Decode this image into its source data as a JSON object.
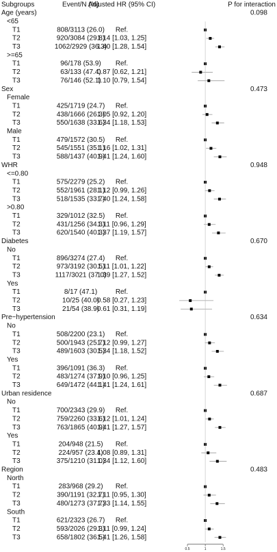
{
  "chart_data": {
    "type": "forest",
    "headers": [
      "Subgroups",
      "Event/N (%)",
      "Adjusted HR (95% CI)",
      "P for interaction"
    ],
    "xlim": [
      0.25,
      1.65
    ],
    "xticks": [
      0.5,
      1,
      1.5
    ],
    "reference_line": 1,
    "point_color": "#000000",
    "ci_color": "#999999",
    "groups": [
      {
        "name": "Age (years)",
        "p": "0.098",
        "subgroups": [
          {
            "name": "<65",
            "rows": [
              {
                "label": "T1",
                "events": "808/3113 (26.0)",
                "hr_text": "Ref.",
                "hr": 1
              },
              {
                "label": "T2",
                "events": "920/3084 (29.8)",
                "hr_text": "1.14 [1.03, 1.25]",
                "hr": 1.14,
                "ci": [
                  1.03,
                  1.25
                ]
              },
              {
                "label": "T3",
                "events": "1062/2929 (36.3)",
                "hr_text": "1.40 [1.28, 1.54]",
                "hr": 1.4,
                "ci": [
                  1.28,
                  1.54
                ]
              }
            ]
          },
          {
            "name": ">=65",
            "rows": [
              {
                "label": "T1",
                "events": "96/178 (53.9)",
                "hr_text": "Ref.",
                "hr": 1
              },
              {
                "label": "T2",
                "events": "63/133 (47.4)",
                "hr_text": "0.87 [0.62, 1.21]",
                "hr": 0.87,
                "ci": [
                  0.62,
                  1.21
                ]
              },
              {
                "label": "T3",
                "events": "76/146 (52.1)",
                "hr_text": "1.10 [0.79, 1.54]",
                "hr": 1.1,
                "ci": [
                  0.79,
                  1.54
                ]
              }
            ]
          }
        ]
      },
      {
        "name": "Sex",
        "p": "0.473",
        "subgroups": [
          {
            "name": "Female",
            "rows": [
              {
                "label": "T1",
                "events": "425/1719 (24.7)",
                "hr_text": "Ref.",
                "hr": 1
              },
              {
                "label": "T2",
                "events": "438/1666 (26.3)",
                "hr_text": "1.05 [0.92, 1.20]",
                "hr": 1.05,
                "ci": [
                  0.92,
                  1.2
                ]
              },
              {
                "label": "T3",
                "events": "550/1638 (33.6)",
                "hr_text": "1.34 [1.18, 1.53]",
                "hr": 1.34,
                "ci": [
                  1.18,
                  1.53
                ]
              }
            ]
          },
          {
            "name": "Male",
            "rows": [
              {
                "label": "T1",
                "events": "479/1572 (30.5)",
                "hr_text": "Ref.",
                "hr": 1
              },
              {
                "label": "T2",
                "events": "545/1551 (35.1)",
                "hr_text": "1.16 [1.02, 1.31]",
                "hr": 1.16,
                "ci": [
                  1.02,
                  1.31
                ]
              },
              {
                "label": "T3",
                "events": "588/1437 (40.9)",
                "hr_text": "1.41 [1.24, 1.60]",
                "hr": 1.41,
                "ci": [
                  1.24,
                  1.6
                ]
              }
            ]
          }
        ]
      },
      {
        "name": "WHR",
        "p": "0.948",
        "subgroups": [
          {
            "name": "<=0.80",
            "rows": [
              {
                "label": "T1",
                "events": "575/2279 (25.2)",
                "hr_text": "Ref.",
                "hr": 1
              },
              {
                "label": "T2",
                "events": "552/1961 (28.1)",
                "hr_text": "1.12 [0.99, 1.26]",
                "hr": 1.12,
                "ci": [
                  0.99,
                  1.26
                ]
              },
              {
                "label": "T3",
                "events": "518/1535 (33.7)",
                "hr_text": "1.40 [1.24, 1.58]",
                "hr": 1.4,
                "ci": [
                  1.24,
                  1.58
                ]
              }
            ]
          },
          {
            "name": ">0.80",
            "rows": [
              {
                "label": "T1",
                "events": "329/1012 (32.5)",
                "hr_text": "Ref.",
                "hr": 1
              },
              {
                "label": "T2",
                "events": "431/1256 (34.3)",
                "hr_text": "1.11 [0.96, 1.29]",
                "hr": 1.11,
                "ci": [
                  0.96,
                  1.29
                ]
              },
              {
                "label": "T3",
                "events": "620/1540 (40.3)",
                "hr_text": "1.37 [1.19, 1.57]",
                "hr": 1.37,
                "ci": [
                  1.19,
                  1.57
                ]
              }
            ]
          }
        ]
      },
      {
        "name": "Diabetes",
        "p": "0.670",
        "subgroups": [
          {
            "name": "No",
            "rows": [
              {
                "label": "T1",
                "events": "896/3274 (27.4)",
                "hr_text": "Ref.",
                "hr": 1
              },
              {
                "label": "T2",
                "events": "973/3192 (30.5)",
                "hr_text": "1.11 [1.01, 1.22]",
                "hr": 1.11,
                "ci": [
                  1.01,
                  1.22
                ]
              },
              {
                "label": "T3",
                "events": "1117/3021 (37.0)",
                "hr_text": "1.39 [1.27, 1.52]",
                "hr": 1.39,
                "ci": [
                  1.27,
                  1.52
                ]
              }
            ]
          },
          {
            "name": "Yes",
            "rows": [
              {
                "label": "T1",
                "events": "8/17 (47.1)",
                "hr_text": "Ref.",
                "hr": 1
              },
              {
                "label": "T2",
                "events": "10/25 (40.0)",
                "hr_text": "0.58 [0.27, 1.23]",
                "hr": 0.58,
                "ci": [
                  0.27,
                  1.23
                ]
              },
              {
                "label": "T3",
                "events": "21/54 (38.9)",
                "hr_text": "0.61 [0.31, 1.19]",
                "hr": 0.61,
                "ci": [
                  0.31,
                  1.19
                ]
              }
            ]
          }
        ]
      },
      {
        "name": "Pre−hypertension",
        "p": "0.634",
        "subgroups": [
          {
            "name": "No",
            "rows": [
              {
                "label": "T1",
                "events": "508/2200 (23.1)",
                "hr_text": "Ref.",
                "hr": 1
              },
              {
                "label": "T2",
                "events": "500/1943 (25.7)",
                "hr_text": "1.12 [0.99, 1.27]",
                "hr": 1.12,
                "ci": [
                  0.99,
                  1.27
                ]
              },
              {
                "label": "T3",
                "events": "489/1603 (30.5)",
                "hr_text": "1.34 [1.18, 1.52]",
                "hr": 1.34,
                "ci": [
                  1.18,
                  1.52
                ]
              }
            ]
          },
          {
            "name": "Yes",
            "rows": [
              {
                "label": "T1",
                "events": "396/1091 (36.3)",
                "hr_text": "Ref.",
                "hr": 1
              },
              {
                "label": "T2",
                "events": "483/1274 (37.9)",
                "hr_text": "1.10 [0.96, 1.25]",
                "hr": 1.1,
                "ci": [
                  0.96,
                  1.25
                ]
              },
              {
                "label": "T3",
                "events": "649/1472 (44.1)",
                "hr_text": "1.41 [1.24, 1.61]",
                "hr": 1.41,
                "ci": [
                  1.24,
                  1.61
                ]
              }
            ]
          }
        ]
      },
      {
        "name": "Urban residence",
        "p": "0.687",
        "subgroups": [
          {
            "name": "No",
            "rows": [
              {
                "label": "T1",
                "events": "700/2343 (29.9)",
                "hr_text": "Ref.",
                "hr": 1
              },
              {
                "label": "T2",
                "events": "759/2260 (33.6)",
                "hr_text": "1.12 [1.01, 1.24]",
                "hr": 1.12,
                "ci": [
                  1.01,
                  1.24
                ]
              },
              {
                "label": "T3",
                "events": "763/1865 (40.9)",
                "hr_text": "1.41 [1.27, 1.57]",
                "hr": 1.41,
                "ci": [
                  1.27,
                  1.57
                ]
              }
            ]
          },
          {
            "name": "Yes",
            "rows": [
              {
                "label": "T1",
                "events": "204/948 (21.5)",
                "hr_text": "Ref.",
                "hr": 1
              },
              {
                "label": "T2",
                "events": "224/957 (23.4)",
                "hr_text": "1.08 [0.89, 1.31]",
                "hr": 1.08,
                "ci": [
                  0.89,
                  1.31
                ]
              },
              {
                "label": "T3",
                "events": "375/1210 (31.0)",
                "hr_text": "1.34 [1.12, 1.60]",
                "hr": 1.34,
                "ci": [
                  1.12,
                  1.6
                ]
              }
            ]
          }
        ]
      },
      {
        "name": "Region",
        "p": "0.483",
        "subgroups": [
          {
            "name": "North",
            "rows": [
              {
                "label": "T1",
                "events": "283/968 (29.2)",
                "hr_text": "Ref.",
                "hr": 1
              },
              {
                "label": "T2",
                "events": "390/1191 (32.7)",
                "hr_text": "1.11 [0.95, 1.30]",
                "hr": 1.11,
                "ci": [
                  0.95,
                  1.3
                ]
              },
              {
                "label": "T3",
                "events": "480/1273 (37.7)",
                "hr_text": "1.33 [1.14, 1.55]",
                "hr": 1.33,
                "ci": [
                  1.14,
                  1.55
                ]
              }
            ]
          },
          {
            "name": "South",
            "rows": [
              {
                "label": "T1",
                "events": "621/2323 (26.7)",
                "hr_text": "Ref.",
                "hr": 1
              },
              {
                "label": "T2",
                "events": "593/2026 (29.3)",
                "hr_text": "1.11 [0.99, 1.24]",
                "hr": 1.11,
                "ci": [
                  0.99,
                  1.24
                ]
              },
              {
                "label": "T3",
                "events": "658/1802 (36.5)",
                "hr_text": "1.41 [1.26, 1.58]",
                "hr": 1.41,
                "ci": [
                  1.26,
                  1.58
                ]
              }
            ]
          }
        ]
      }
    ]
  }
}
